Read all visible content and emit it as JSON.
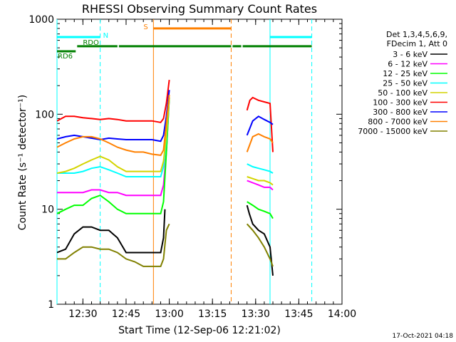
{
  "chart_data": {
    "type": "line",
    "title": "RHESSI Observing Summary Count Rates",
    "xlabel": "Start Time (12-Sep-06 12:21:02)",
    "ylabel": "Count Rate (s⁻¹ detector⁻¹)",
    "x_unit": "minutes after 12:21:02",
    "xlim": [
      0,
      99
    ],
    "ylim": [
      1,
      1000
    ],
    "yscale": "log",
    "grid": false,
    "legend_position": "right",
    "x_tick_labels": [
      "12:30",
      "12:45",
      "13:00",
      "13:15",
      "13:30",
      "13:45",
      "14:00"
    ],
    "x_ticks": [
      9,
      24,
      39,
      54,
      69,
      84,
      99
    ],
    "y_tick_labels": [
      "1",
      "10",
      "100",
      "1000"
    ],
    "y_ticks": [
      1,
      10,
      100,
      1000
    ],
    "legend_header": [
      "Det 1,3,4,5,6,9,",
      "FDecim 1, Att 0"
    ],
    "series": [
      {
        "name": "3 - 6 keV",
        "color": "#000000",
        "x": [
          0,
          3,
          6,
          9,
          12,
          15,
          18,
          21,
          24,
          27,
          30,
          33,
          36,
          37,
          37.5,
          66,
          66.8,
          68,
          70,
          72,
          74,
          75
        ],
        "y": [
          3.5,
          3.8,
          5.5,
          6.5,
          6.5,
          6,
          6,
          5,
          3.5,
          3.5,
          3.5,
          3.5,
          3.5,
          5,
          10,
          11,
          9,
          7,
          6,
          5.5,
          4,
          2
        ]
      },
      {
        "name": "6 - 12 keV",
        "color": "#ff00ff",
        "x": [
          0,
          3,
          6,
          9,
          12,
          15,
          18,
          21,
          24,
          27,
          30,
          33,
          36,
          37,
          38,
          39,
          66,
          68,
          70,
          72,
          74,
          75
        ],
        "y": [
          15,
          15,
          15,
          15,
          16,
          16,
          15,
          15,
          14,
          14,
          14,
          14,
          14,
          18,
          40,
          150,
          20,
          19,
          18,
          17,
          17,
          16
        ]
      },
      {
        "name": "12 - 25 keV",
        "color": "#00ff00",
        "x": [
          0,
          3,
          6,
          9,
          12,
          15,
          18,
          21,
          24,
          27,
          30,
          33,
          36,
          37,
          38,
          39,
          66,
          68,
          70,
          72,
          74,
          75
        ],
        "y": [
          9,
          10,
          11,
          11,
          13,
          14,
          12,
          10,
          9,
          9,
          9,
          9,
          9,
          12,
          40,
          150,
          12,
          11,
          10,
          9.5,
          9,
          8
        ]
      },
      {
        "name": "25 - 50 keV",
        "color": "#00ffff",
        "x": [
          0,
          3,
          6,
          9,
          12,
          15,
          18,
          21,
          24,
          27,
          30,
          33,
          36,
          37,
          38,
          39,
          66,
          68,
          70,
          72,
          74,
          75
        ],
        "y": [
          24,
          24,
          24,
          25,
          27,
          28,
          26,
          24,
          22,
          22,
          22,
          22,
          22,
          28,
          55,
          150,
          30,
          28,
          27,
          26,
          25,
          24
        ]
      },
      {
        "name": "50 - 100 keV",
        "color": "#d4d400",
        "x": [
          0,
          3,
          6,
          9,
          12,
          15,
          18,
          21,
          24,
          27,
          30,
          33,
          36,
          37,
          38,
          39,
          66,
          68,
          70,
          72,
          74,
          75
        ],
        "y": [
          24,
          25,
          27,
          30,
          33,
          36,
          33,
          28,
          25,
          25,
          25,
          25,
          25,
          32,
          60,
          150,
          22,
          21,
          20,
          20,
          19,
          18
        ]
      },
      {
        "name": "100 - 300 keV",
        "color": "#ff0000",
        "x": [
          0,
          3,
          6,
          9,
          12,
          15,
          18,
          21,
          24,
          27,
          30,
          33,
          36,
          37,
          38,
          39,
          66,
          67,
          68,
          70,
          72,
          74,
          75
        ],
        "y": [
          85,
          95,
          95,
          92,
          90,
          88,
          90,
          88,
          85,
          85,
          85,
          85,
          82,
          90,
          130,
          230,
          110,
          140,
          150,
          140,
          135,
          130,
          40
        ]
      },
      {
        "name": "300 - 800 keV",
        "color": "#0000ff",
        "x": [
          0,
          3,
          6,
          9,
          12,
          15,
          18,
          21,
          24,
          27,
          30,
          33,
          36,
          37,
          38,
          39,
          66,
          68,
          70,
          72,
          74,
          75
        ],
        "y": [
          55,
          58,
          60,
          58,
          56,
          54,
          56,
          55,
          54,
          54,
          54,
          54,
          52,
          60,
          95,
          180,
          60,
          85,
          95,
          88,
          82,
          78
        ]
      },
      {
        "name": "800 - 7000 keV",
        "color": "#ff8000",
        "x": [
          0,
          3,
          6,
          9,
          12,
          15,
          18,
          21,
          24,
          27,
          30,
          33,
          36,
          37,
          38,
          39,
          66,
          68,
          70,
          72,
          74,
          75
        ],
        "y": [
          45,
          50,
          55,
          58,
          58,
          55,
          50,
          45,
          42,
          40,
          40,
          38,
          37,
          42,
          80,
          160,
          40,
          58,
          62,
          58,
          55,
          50
        ]
      },
      {
        "name": "7000 - 15000 keV",
        "color": "#808000",
        "x": [
          0,
          3,
          6,
          9,
          12,
          15,
          18,
          21,
          24,
          27,
          30,
          33,
          36,
          37,
          38,
          39,
          66,
          68,
          70,
          72,
          74,
          75
        ],
        "y": [
          3,
          3,
          3.5,
          4,
          4,
          3.8,
          3.8,
          3.5,
          3,
          2.8,
          2.5,
          2.5,
          2.5,
          3,
          6,
          7,
          7,
          6,
          5,
          4,
          3,
          2.5
        ]
      }
    ],
    "annotations": {
      "orbit_lines": [
        {
          "x": 0,
          "color": "#00ffff",
          "style": "solid"
        },
        {
          "x": 15,
          "color": "#00ffff",
          "style": "dashed"
        },
        {
          "x": 33.5,
          "color": "#ff8000",
          "style": "solid"
        },
        {
          "x": 60.5,
          "color": "#ff8000",
          "style": "dashed"
        },
        {
          "x": 74,
          "color": "#00ffff",
          "style": "solid"
        },
        {
          "x": 88.5,
          "color": "#00ffff",
          "style": "dashed"
        }
      ],
      "bars": [
        {
          "label": "N",
          "color": "#00ffff",
          "y": 650,
          "segments": [
            [
              0,
              15
            ],
            [
              74,
              88.5
            ]
          ]
        },
        {
          "label": "S",
          "color": "#ff8000",
          "y": 800,
          "segments": [
            [
              33.5,
              60.5
            ]
          ]
        },
        {
          "label": "RDO",
          "color": "#008000",
          "y": 520,
          "segments": [
            [
              7,
              21
            ],
            [
              21.5,
              60.5
            ],
            [
              61,
              64
            ],
            [
              64.5,
              88.5
            ]
          ]
        },
        {
          "label": "RD6",
          "color": "#008000",
          "y": 460,
          "segments": [
            [
              0,
              6.5
            ]
          ]
        }
      ]
    }
  },
  "timestamp": "17-Oct-2021 04:18"
}
